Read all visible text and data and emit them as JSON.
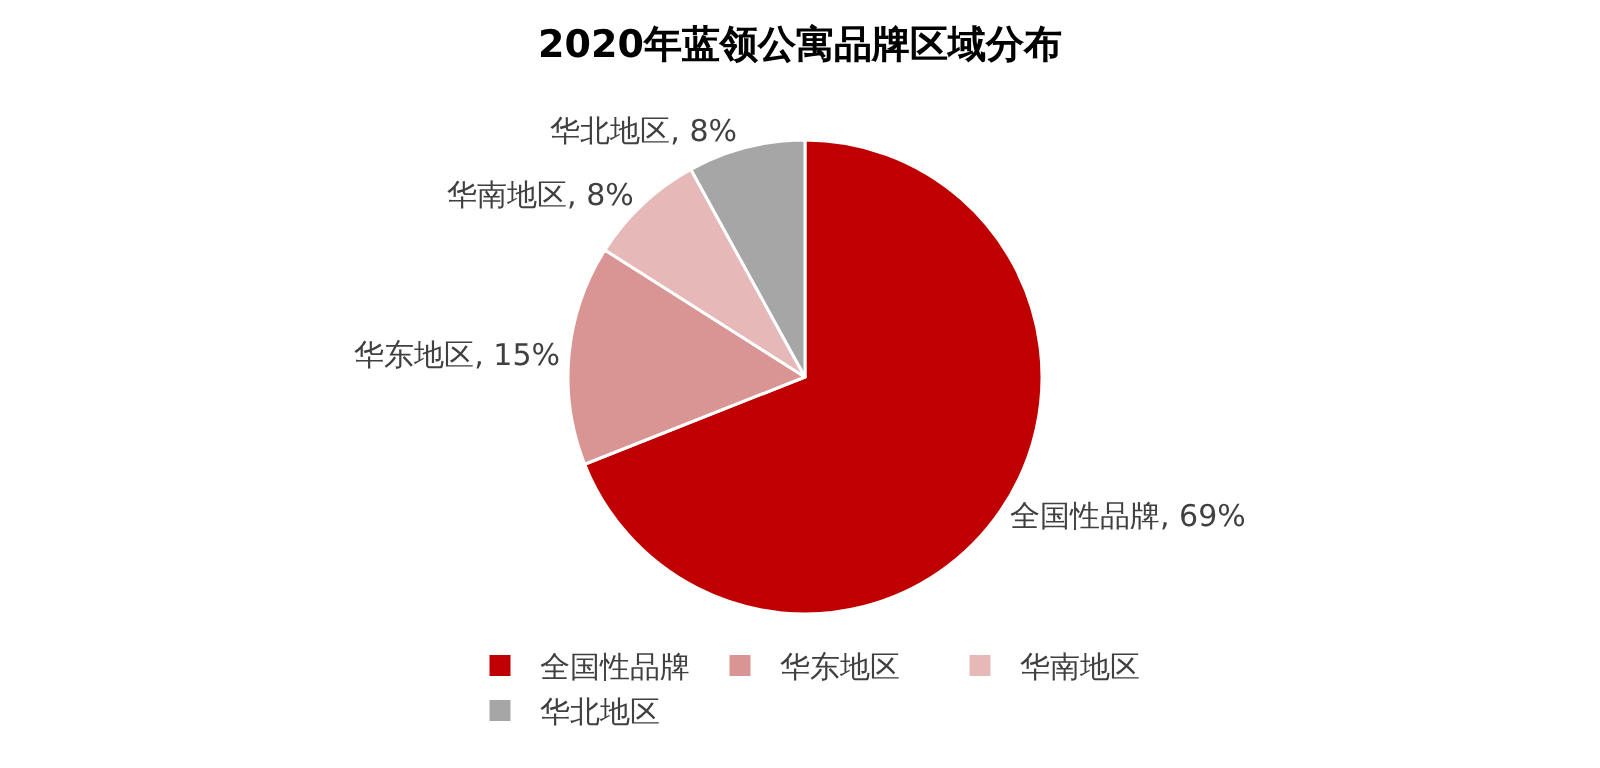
{
  "chart_data": {
    "type": "pie",
    "title": "2020年蓝领公寓品牌区域分布",
    "categories": [
      "全国性品牌",
      "华东地区",
      "华南地区",
      "华北地区"
    ],
    "values": [
      69,
      15,
      8,
      8
    ],
    "colors": [
      "#c00000",
      "#d99594",
      "#e6b9b8",
      "#a6a6a6"
    ],
    "value_labels": [
      "全国性品牌, 69%",
      "华东地区, 15%",
      "华南地区, 8%",
      "华北地区, 8%"
    ],
    "legend": "bottom"
  }
}
